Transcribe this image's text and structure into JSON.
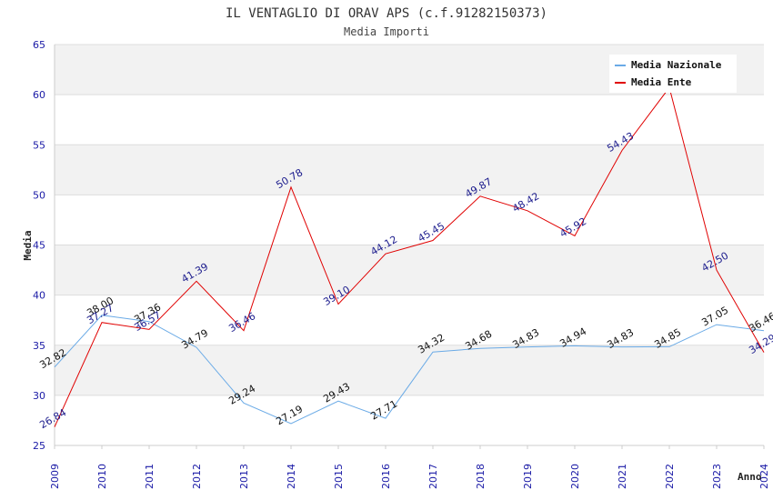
{
  "chart_data": {
    "type": "line",
    "title": "IL VENTAGLIO DI ORAV APS (c.f.91282150373)",
    "subtitle": "Media Importi",
    "xlabel": "Anno",
    "ylabel": "Media",
    "ylim": [
      25,
      65
    ],
    "yticks": [
      "25",
      "30",
      "35",
      "40",
      "45",
      "50",
      "55",
      "60",
      "65"
    ],
    "categories": [
      "2009",
      "2010",
      "2011",
      "2012",
      "2013",
      "2014",
      "2015",
      "2016",
      "2017",
      "2018",
      "2019",
      "2020",
      "2021",
      "2022",
      "2023",
      "2024"
    ],
    "series": [
      {
        "name": "Media Nazionale",
        "color": "#6aaae6",
        "values": [
          32.82,
          38.0,
          37.36,
          34.79,
          29.24,
          27.19,
          29.43,
          27.71,
          34.32,
          34.68,
          34.83,
          34.94,
          34.83,
          34.85,
          37.05,
          36.46
        ],
        "labels": [
          "32.82",
          "38.00",
          "37.36",
          "34.79",
          "29.24",
          "27.19",
          "29.43",
          "27.71",
          "34.32",
          "34.68",
          "34.83",
          "34.94",
          "34.83",
          "34.85",
          "37.05",
          "36.46"
        ]
      },
      {
        "name": "Media Ente",
        "color": "#e00000",
        "values": [
          26.84,
          37.27,
          36.57,
          41.39,
          36.46,
          50.78,
          39.1,
          44.12,
          45.45,
          49.87,
          48.42,
          45.92,
          54.43,
          60.71,
          42.5,
          34.29
        ],
        "labels": [
          "26.84",
          "37.27",
          "36.57",
          "41.39",
          "36.46",
          "50.78",
          "39.10",
          "44.12",
          "45.45",
          "49.87",
          "48.42",
          "45.92",
          "54.43",
          "",
          "42.50",
          "34.29"
        ]
      }
    ],
    "legend": "top-right",
    "grid": true
  }
}
